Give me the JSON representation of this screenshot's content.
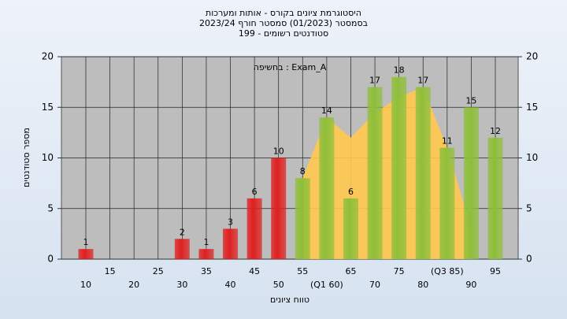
{
  "chart_data": {
    "type": "bar",
    "title": "היסטוגרמת ציונים בקורס - אותות ומערכות",
    "subtitle": "בסמסטר (01/2023) סמסטר חורף 2023/24",
    "subtitle2": "סטודנטים רשומים - 199",
    "annotation": "בחשיפה : Exam_A",
    "x_label": "טווח ציונים",
    "y_label": "מספר סטודנטים",
    "categories": [
      "10",
      "15",
      "20",
      "25",
      "30",
      "35",
      "40",
      "45",
      "50",
      "55",
      "(Q1 60)",
      "65",
      "70",
      "75",
      "80",
      "(Q3 85)",
      "90",
      "95"
    ],
    "values": [
      1,
      0,
      0,
      0,
      2,
      1,
      3,
      6,
      10,
      8,
      14,
      6,
      17,
      18,
      17,
      11,
      15,
      12
    ],
    "colors": [
      "#e02020",
      "#e02020",
      "#e02020",
      "#e02020",
      "#e02020",
      "#e02020",
      "#e02020",
      "#e02020",
      "#e02020",
      "#8fbf3a",
      "#8fbf3a",
      "#8fbf3a",
      "#8fbf3a",
      "#8fbf3a",
      "#8fbf3a",
      "#8fbf3a",
      "#8fbf3a",
      "#8fbf3a"
    ],
    "area": {
      "color": "#ffc94d",
      "values": [
        null,
        null,
        null,
        null,
        null,
        null,
        null,
        null,
        null,
        8,
        14,
        12,
        14.5,
        16,
        17,
        11,
        3,
        null
      ]
    },
    "ylim": [
      0,
      20
    ],
    "yticks": [
      0,
      5,
      10,
      15,
      20
    ],
    "grid": true
  }
}
